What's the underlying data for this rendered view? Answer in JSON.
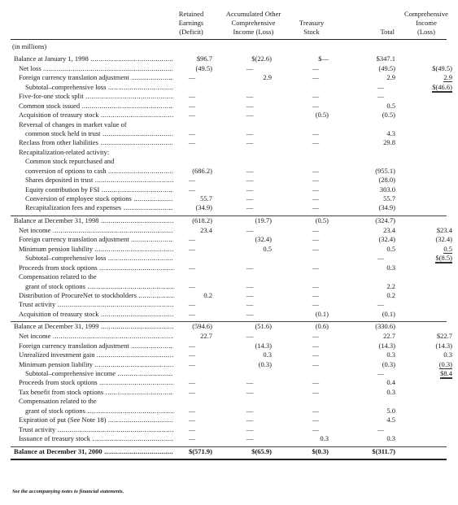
{
  "headers": {
    "retained": [
      "Retained",
      "Earnings",
      "(Deficit)"
    ],
    "aoc": [
      "Accumulated Other",
      "Comprehensive",
      "Income (Loss)"
    ],
    "treasury": [
      "Treasury",
      "Stock"
    ],
    "total": [
      "Total"
    ],
    "comprehensive": [
      "Comprehensive",
      "Income",
      "(Loss)"
    ]
  },
  "units": "(in millions)",
  "rows": [
    {
      "label": "Balance at January 1, 1998",
      "re": "$96.7",
      "aoc": "$(22.6)",
      "ts": "$—",
      "tot": "$347.1",
      "ci": "",
      "type": "balance"
    },
    {
      "label": "Net loss",
      "re": "(49.5)",
      "aoc": "—",
      "ts": "—",
      "tot": "(49.5)",
      "ci": "$(49.5)",
      "indent": 1
    },
    {
      "label": "Foreign currency translation adjustment",
      "re": "—",
      "aoc": "2.9",
      "ts": "—",
      "tot": "2.9",
      "ci": "2.9",
      "indent": 1,
      "ci_style": "u"
    },
    {
      "label": "Subtotal–comprehensive loss",
      "re": "",
      "aoc": "",
      "ts": "",
      "tot": "—",
      "ci": "$(46.6)",
      "indent": 2,
      "ci_style": "uu"
    },
    {
      "label": "Five-for-one stock split",
      "re": "—",
      "aoc": "—",
      "ts": "—",
      "tot": "—",
      "ci": "",
      "indent": 1
    },
    {
      "label": "Common stock issued",
      "re": "—",
      "aoc": "—",
      "ts": "—",
      "tot": "0.5",
      "ci": "",
      "indent": 1
    },
    {
      "label": "Acquisition of treasury stock",
      "re": "—",
      "aoc": "—",
      "ts": "(0.5)",
      "tot": "(0.5)",
      "ci": "",
      "indent": 1
    },
    {
      "label": "Reversal of changes in market value of",
      "re": "",
      "aoc": "",
      "ts": "",
      "tot": "",
      "ci": "",
      "indent": 1,
      "nodots": true
    },
    {
      "label": "common stock held in trust",
      "re": "—",
      "aoc": "—",
      "ts": "—",
      "tot": "4.3",
      "ci": "",
      "indent": 2
    },
    {
      "label": "Reclass from other liabilities",
      "re": "—",
      "aoc": "—",
      "ts": "—",
      "tot": "29.8",
      "ci": "",
      "indent": 1
    },
    {
      "label": "Recapitalization-related activity:",
      "re": "",
      "aoc": "",
      "ts": "",
      "tot": "",
      "ci": "",
      "indent": 1,
      "nodots": true
    },
    {
      "label": "Common stock repurchased and",
      "re": "",
      "aoc": "",
      "ts": "",
      "tot": "",
      "ci": "",
      "indent": 2,
      "nodots": true
    },
    {
      "label": "conversion of options to cash",
      "re": "(686.2)",
      "aoc": "—",
      "ts": "—",
      "tot": "(955.1)",
      "ci": "",
      "indent": 2,
      "extra": 8
    },
    {
      "label": "Shares deposited in trust",
      "re": "—",
      "aoc": "—",
      "ts": "—",
      "tot": "(28.0)",
      "ci": "",
      "indent": 2
    },
    {
      "label": "Equity contribution by FSI",
      "re": "—",
      "aoc": "—",
      "ts": "—",
      "tot": "303.0",
      "ci": "",
      "indent": 2
    },
    {
      "label": "Conversion of employee stock options",
      "re": "55.7",
      "aoc": "—",
      "ts": "—",
      "tot": "55.7",
      "ci": "",
      "indent": 2
    },
    {
      "label": "Recapitalization fees and expenses",
      "re": "(34.9)",
      "aoc": "—",
      "ts": "—",
      "tot": "(34.9)",
      "ci": "",
      "indent": 2
    },
    {
      "label": "Balance at December 31, 1998",
      "re": "(618.2)",
      "aoc": "(19.7)",
      "ts": "(0.5)",
      "tot": "(324.7)",
      "ci": "",
      "type": "section"
    },
    {
      "label": "Net income",
      "re": "23.4",
      "aoc": "—",
      "ts": "—",
      "tot": "23.4",
      "ci": "$23.4",
      "indent": 1
    },
    {
      "label": "Foreign currency translation adjustment",
      "re": "—",
      "aoc": "(32.4)",
      "ts": "—",
      "tot": "(32.4)",
      "ci": "(32.4)",
      "indent": 1
    },
    {
      "label": "Minimum pension liability",
      "re": "—",
      "aoc": "0.5",
      "ts": "—",
      "tot": "0.5",
      "ci": "0.5",
      "indent": 1,
      "ci_style": "u"
    },
    {
      "label": "Subtotal–comprehensive loss",
      "re": "",
      "aoc": "",
      "ts": "",
      "tot": "—",
      "ci": "$(8.5)",
      "indent": 2,
      "ci_style": "uu"
    },
    {
      "label": "Proceeds from stock options",
      "re": "—",
      "aoc": "—",
      "ts": "—",
      "tot": "0.3",
      "ci": "",
      "indent": 1
    },
    {
      "label": "Compensation related to the",
      "re": "",
      "aoc": "",
      "ts": "",
      "tot": "",
      "ci": "",
      "indent": 1,
      "nodots": true
    },
    {
      "label": "grant of stock options",
      "re": "—",
      "aoc": "—",
      "ts": "—",
      "tot": "2.2",
      "ci": "",
      "indent": 2
    },
    {
      "label": "Distribution of ProcureNet to stockholders",
      "re": "0.2",
      "aoc": "—",
      "ts": "—",
      "tot": "0.2",
      "ci": "",
      "indent": 1
    },
    {
      "label": "Trust activity",
      "re": "—",
      "aoc": "—",
      "ts": "—",
      "tot": "—",
      "ci": "",
      "indent": 1
    },
    {
      "label": "Acquisition of treasury stock",
      "re": "—",
      "aoc": "—",
      "ts": "(0.1)",
      "tot": "(0.1)",
      "ci": "",
      "indent": 1
    },
    {
      "label": "Balance at December 31, 1999",
      "re": "(594.6)",
      "aoc": "(51.6)",
      "ts": "(0.6)",
      "tot": "(330.6)",
      "ci": "",
      "type": "section"
    },
    {
      "label": "Net income",
      "re": "22.7",
      "aoc": "—",
      "ts": "—",
      "tot": "22.7",
      "ci": "$22.7",
      "indent": 1
    },
    {
      "label": "Foreign currency translation adjustment",
      "re": "—",
      "aoc": "(14.3)",
      "ts": "—",
      "tot": "(14.3)",
      "ci": "(14.3)",
      "indent": 1
    },
    {
      "label": "Unrealized investment gain",
      "re": "—",
      "aoc": "0.3",
      "ts": "—",
      "tot": "0.3",
      "ci": "0.3",
      "indent": 1
    },
    {
      "label": "Minimum pension liability",
      "re": "—",
      "aoc": "(0.3)",
      "ts": "—",
      "tot": "(0.3)",
      "ci": "(0.3)",
      "indent": 1,
      "ci_style": "u"
    },
    {
      "label": "Subtotal–comprehensive income",
      "re": "",
      "aoc": "",
      "ts": "",
      "tot": "—",
      "ci": "$8.4",
      "indent": 2,
      "ci_style": "uu"
    },
    {
      "label": "Proceeds from stock options",
      "re": "—",
      "aoc": "—",
      "ts": "—",
      "tot": "0.4",
      "ci": "",
      "indent": 1
    },
    {
      "label": "Tax benefit from stock options",
      "re": "—",
      "aoc": "—",
      "ts": "—",
      "tot": "0.3",
      "ci": "",
      "indent": 1
    },
    {
      "label": "Compensation related to the",
      "re": "",
      "aoc": "",
      "ts": "",
      "tot": "",
      "ci": "",
      "indent": 1,
      "nodots": true
    },
    {
      "label": "grant of stock options",
      "re": "—",
      "aoc": "—",
      "ts": "—",
      "tot": "5.0",
      "ci": "",
      "indent": 2
    },
    {
      "label": "Expiration of put (See Note 18)",
      "re": "—",
      "aoc": "—",
      "ts": "—",
      "tot": "4.5",
      "ci": "",
      "indent": 1
    },
    {
      "label": "Trust activity",
      "re": "—",
      "aoc": "—",
      "ts": "—",
      "tot": "—",
      "ci": "",
      "indent": 1
    },
    {
      "label": "Issuance of treasury stock",
      "re": "—",
      "aoc": "—",
      "ts": "0.3",
      "tot": "0.3",
      "ci": "",
      "indent": 1
    },
    {
      "label": "Balance at December 31, 2000",
      "re": "$(571.9)",
      "aoc": "$(65.9)",
      "ts": "$(0.3)",
      "tot": "$(311.7)",
      "ci": "",
      "type": "final"
    }
  ],
  "footnote": "See the accompanying notes to financial statements."
}
